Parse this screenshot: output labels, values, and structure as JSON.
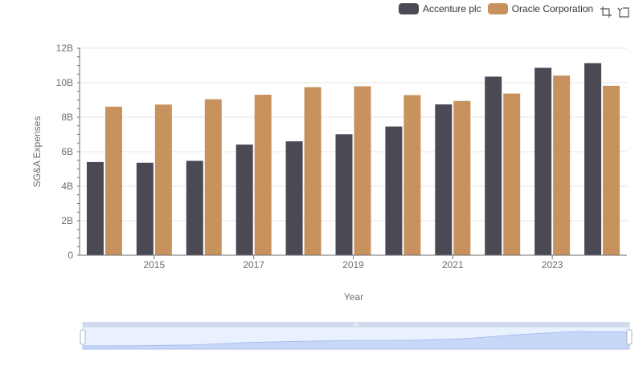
{
  "legend": {
    "items": [
      {
        "name": "Accenture plc",
        "color": "#4a4954"
      },
      {
        "name": "Oracle Corporation",
        "color": "#c8925e"
      }
    ]
  },
  "toolbox": {
    "icons": [
      "zoom-in-icon",
      "zoom-reset-icon"
    ]
  },
  "chart_data": {
    "type": "bar",
    "xlabel": "Year",
    "ylabel": "SG&A Expenses",
    "x": [
      2014,
      2015,
      2016,
      2017,
      2018,
      2019,
      2020,
      2021,
      2022,
      2023,
      2024
    ],
    "x_tick_labels": [
      "2015",
      "2017",
      "2019",
      "2021",
      "2023"
    ],
    "y_tick_labels": [
      "0",
      "2B",
      "4B",
      "6B",
      "8B",
      "10B",
      "12B"
    ],
    "ylim": [
      0,
      12000000000
    ],
    "grid": true,
    "legend_position": "top-right",
    "series": [
      {
        "name": "Accenture plc",
        "color": "#4a4954",
        "values": [
          5400000000,
          5360000000,
          5470000000,
          6410000000,
          6600000000,
          7010000000,
          7460000000,
          8740000000,
          10350000000,
          10860000000,
          11130000000
        ]
      },
      {
        "name": "Oracle Corporation",
        "color": "#c8925e",
        "values": [
          8610000000,
          8730000000,
          9040000000,
          9300000000,
          9740000000,
          9790000000,
          9280000000,
          8940000000,
          9370000000,
          10410000000,
          9820000000
        ]
      }
    ],
    "data_zoom": {
      "start_percent": 0,
      "end_percent": 100
    }
  }
}
